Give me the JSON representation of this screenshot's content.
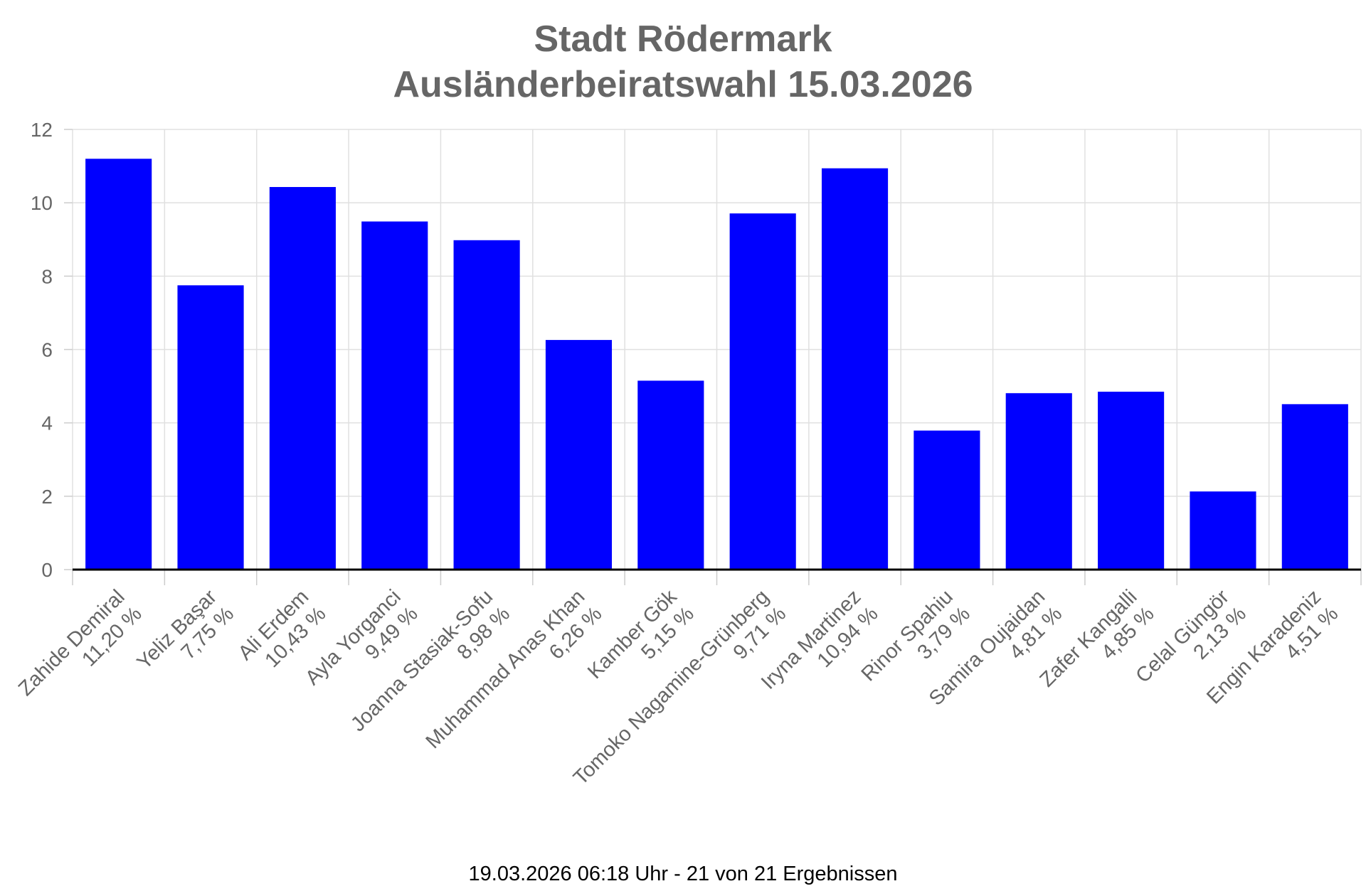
{
  "chart_data": {
    "type": "bar",
    "title": [
      "Stadt Rödermark",
      "Ausländerbeiratswahl 15.03.2026"
    ],
    "categories": [
      "Zahide Demiral",
      "Yeliz Başar",
      "Ali Erdem",
      "Ayla Yorganci",
      "Joanna Stasiak-Sofu",
      "Muhammad Anas Khan",
      "Kamber Gök",
      "Tomoko Nagamine-Grünberg",
      "Iryna Martinez",
      "Rinor Spahiu",
      "Samira Oujaidan",
      "Zafer Kangalli",
      "Celal Güngör",
      "Engin Karadeniz"
    ],
    "value_labels": [
      "11,20 %",
      "7,75 %",
      "10,43 %",
      "9,49 %",
      "8,98 %",
      "6,26 %",
      "5,15 %",
      "9,71 %",
      "10,94 %",
      "3,79 %",
      "4,81 %",
      "4,85 %",
      "2,13 %",
      "4,51 %"
    ],
    "values": [
      11.2,
      7.75,
      10.43,
      9.49,
      8.98,
      6.26,
      5.15,
      9.71,
      10.94,
      3.79,
      4.81,
      4.85,
      2.13,
      4.51
    ],
    "ylim": [
      0,
      12
    ],
    "yticks": [
      0,
      2,
      4,
      6,
      8,
      10,
      12
    ],
    "grid": true,
    "bar_color": "#0000ff",
    "xlabel": "",
    "ylabel": ""
  },
  "footer": "19.03.2026 06:18 Uhr - 21 von 21 Ergebnissen"
}
